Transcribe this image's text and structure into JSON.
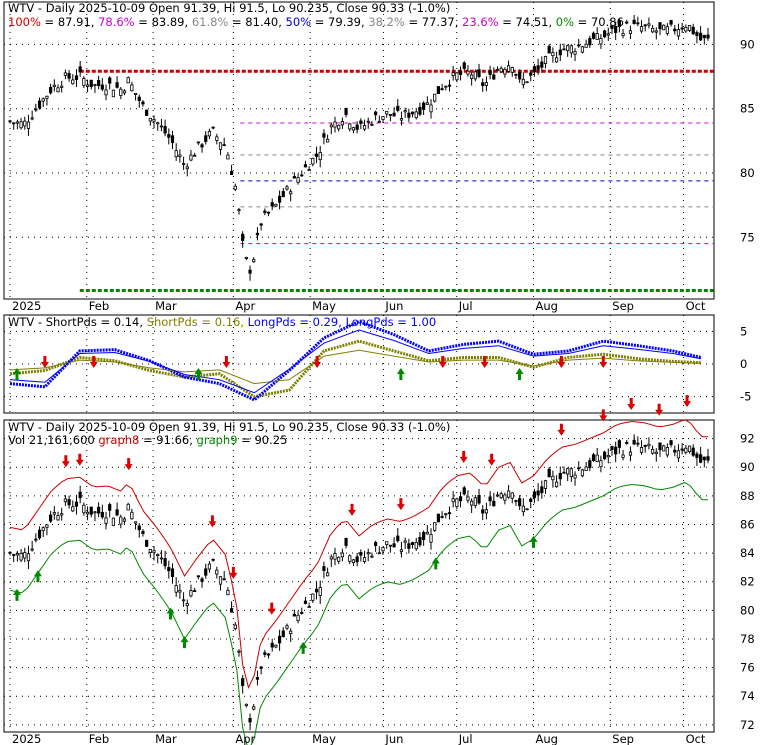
{
  "ticker": "WTV",
  "colors": {
    "up": "#000000",
    "down": "#000000",
    "fib_red": "#cc0000",
    "fib_green": "#008800",
    "fib_blue": "#0000cc",
    "fib_magenta": "#cc00cc",
    "fib_grey": "#888888",
    "short": "#808000",
    "long": "#0000ff",
    "graph8": "#cc0000",
    "graph9": "#008800",
    "arrow_up": "#008800",
    "arrow_down": "#dd0000",
    "grid": "#000000"
  },
  "x_axis": {
    "labels": [
      {
        "text": "2025",
        "pos": 0.0
      },
      {
        "text": "Feb",
        "pos": 0.11
      },
      {
        "text": "Mar",
        "pos": 0.205
      },
      {
        "text": "Apr",
        "pos": 0.32
      },
      {
        "text": "May",
        "pos": 0.43
      },
      {
        "text": "Jun",
        "pos": 0.535
      },
      {
        "text": "Jul",
        "pos": 0.64
      },
      {
        "text": "Aug",
        "pos": 0.75
      },
      {
        "text": "Sep",
        "pos": 0.86
      },
      {
        "text": "Oct",
        "pos": 0.965
      }
    ]
  },
  "panel1": {
    "title": "WTV - Daily 2025-10-09 Open 91.39, Hi 91.5, Lo 90.235, Close 90.33 (-1.0%)",
    "fib_legend": [
      {
        "label": "100%",
        "value": "87.91",
        "color": "#cc0000"
      },
      {
        "label": "78.6%",
        "value": "83.89",
        "color": "#cc00cc"
      },
      {
        "label": "61.8%",
        "value": "81.40",
        "color": "#888888"
      },
      {
        "label": "50%",
        "value": "79.39",
        "color": "#0000cc"
      },
      {
        "label": "38.2%",
        "value": "77.37",
        "color": "#888888"
      },
      {
        "label": "23.6%",
        "value": "74.51",
        "color": "#cc00cc"
      },
      {
        "label": "0%",
        "value": "70.86",
        "color": "#008800"
      }
    ],
    "y_ticks": [
      "90",
      "85",
      "80",
      "75"
    ],
    "y_tick_values": [
      90,
      85,
      80,
      75
    ],
    "ylim": [
      70.2,
      93.3
    ]
  },
  "panel2": {
    "title_parts": [
      {
        "text": "WTV - ShortPds = 0.14, ",
        "color": "#000000"
      },
      {
        "text": "ShortPds = 0.16, ",
        "color": "#808000"
      },
      {
        "text": "LongPds = 0.29, ",
        "color": "#0000ff"
      },
      {
        "text": "LongPds = 1.00",
        "color": "#0000ff"
      }
    ],
    "y_ticks": [
      "5",
      "0",
      "-5"
    ],
    "y_tick_values": [
      5,
      0,
      -5
    ],
    "ylim": [
      -7.5,
      7.5
    ]
  },
  "panel3": {
    "title": "WTV - Daily 2025-10-09 Open 91.39, Hi 91.5, Lo 90.235, Close 90.33 (-1.0%)",
    "legend_parts": [
      {
        "text": "Vol 21,161,600 ",
        "color": "#000000"
      },
      {
        "text": "graph8",
        "color": "#cc0000"
      },
      {
        "text": " = 91.66, ",
        "color": "#000000"
      },
      {
        "text": "graph9",
        "color": "#008800"
      },
      {
        "text": " = 90.25",
        "color": "#000000"
      }
    ],
    "y_ticks": [
      "92",
      "90",
      "88",
      "86",
      "84",
      "82",
      "80",
      "78",
      "76",
      "74",
      "72"
    ],
    "y_tick_values": [
      92,
      90,
      88,
      86,
      84,
      82,
      80,
      78,
      76,
      74,
      72
    ],
    "ylim": [
      71.5,
      93.3
    ]
  },
  "chart_data": {
    "type": "candlestick",
    "title": "WTV - Daily 2025-10-09",
    "x_range": [
      "2025-01-02",
      "2025-10-09"
    ],
    "close_path": [
      [
        0.0,
        84.0
      ],
      [
        0.02,
        83.8
      ],
      [
        0.04,
        85.2
      ],
      [
        0.06,
        86.6
      ],
      [
        0.08,
        87.4
      ],
      [
        0.1,
        87.5
      ],
      [
        0.12,
        86.8
      ],
      [
        0.14,
        86.9
      ],
      [
        0.16,
        86.5
      ],
      [
        0.17,
        87.2
      ],
      [
        0.19,
        85.2
      ],
      [
        0.21,
        84.0
      ],
      [
        0.23,
        82.6
      ],
      [
        0.25,
        80.6
      ],
      [
        0.27,
        82.0
      ],
      [
        0.29,
        83.2
      ],
      [
        0.31,
        82.0
      ],
      [
        0.325,
        78.4
      ],
      [
        0.335,
        73.6
      ],
      [
        0.345,
        72.4
      ],
      [
        0.36,
        76.2
      ],
      [
        0.38,
        77.4
      ],
      [
        0.4,
        78.8
      ],
      [
        0.42,
        80.2
      ],
      [
        0.44,
        81.4
      ],
      [
        0.46,
        83.6
      ],
      [
        0.48,
        84.6
      ],
      [
        0.5,
        83.4
      ],
      [
        0.52,
        84.2
      ],
      [
        0.54,
        84.6
      ],
      [
        0.56,
        84.4
      ],
      [
        0.58,
        84.8
      ],
      [
        0.6,
        85.4
      ],
      [
        0.62,
        86.8
      ],
      [
        0.64,
        87.6
      ],
      [
        0.66,
        87.8
      ],
      [
        0.68,
        86.8
      ],
      [
        0.7,
        88.2
      ],
      [
        0.72,
        88.6
      ],
      [
        0.73,
        87.0
      ],
      [
        0.75,
        87.6
      ],
      [
        0.77,
        88.8
      ],
      [
        0.79,
        89.6
      ],
      [
        0.81,
        89.8
      ],
      [
        0.83,
        90.2
      ],
      [
        0.85,
        90.6
      ],
      [
        0.87,
        91.2
      ],
      [
        0.89,
        91.4
      ],
      [
        0.91,
        91.3
      ],
      [
        0.93,
        91.0
      ],
      [
        0.95,
        91.2
      ],
      [
        0.97,
        91.6
      ],
      [
        0.99,
        90.33
      ]
    ],
    "fib_levels": [
      {
        "label": "100%",
        "value": 87.91
      },
      {
        "label": "78.6%",
        "value": 83.89
      },
      {
        "label": "61.8%",
        "value": 81.4
      },
      {
        "label": "50%",
        "value": 79.39
      },
      {
        "label": "38.2%",
        "value": 77.37
      },
      {
        "label": "23.6%",
        "value": 74.51
      },
      {
        "label": "0%",
        "value": 70.86
      }
    ],
    "oscillator": {
      "short": [
        [
          0.0,
          -1.5
        ],
        [
          0.05,
          -1.0
        ],
        [
          0.1,
          1.0
        ],
        [
          0.15,
          0.5
        ],
        [
          0.2,
          -1.0
        ],
        [
          0.25,
          -2.0
        ],
        [
          0.3,
          -1.5
        ],
        [
          0.35,
          -5.0
        ],
        [
          0.4,
          -4.0
        ],
        [
          0.45,
          2.0
        ],
        [
          0.5,
          3.5
        ],
        [
          0.55,
          2.0
        ],
        [
          0.6,
          0.5
        ],
        [
          0.65,
          1.0
        ],
        [
          0.7,
          1.0
        ],
        [
          0.75,
          -0.5
        ],
        [
          0.8,
          1.0
        ],
        [
          0.85,
          1.5
        ],
        [
          0.9,
          0.8
        ],
        [
          0.95,
          0.4
        ],
        [
          0.99,
          0.2
        ]
      ],
      "long": [
        [
          0.0,
          -3.0
        ],
        [
          0.05,
          -3.5
        ],
        [
          0.1,
          2.0
        ],
        [
          0.15,
          2.2
        ],
        [
          0.2,
          0.5
        ],
        [
          0.25,
          -2.0
        ],
        [
          0.3,
          -3.0
        ],
        [
          0.35,
          -5.5
        ],
        [
          0.4,
          -1.0
        ],
        [
          0.45,
          4.0
        ],
        [
          0.5,
          6.5
        ],
        [
          0.55,
          4.5
        ],
        [
          0.6,
          2.0
        ],
        [
          0.65,
          3.0
        ],
        [
          0.7,
          3.5
        ],
        [
          0.75,
          1.5
        ],
        [
          0.8,
          2.0
        ],
        [
          0.85,
          3.5
        ],
        [
          0.9,
          2.8
        ],
        [
          0.95,
          2.0
        ],
        [
          0.99,
          1.0
        ]
      ]
    },
    "graph8": 91.66,
    "graph9": 90.25,
    "volume": "21,161,600"
  }
}
